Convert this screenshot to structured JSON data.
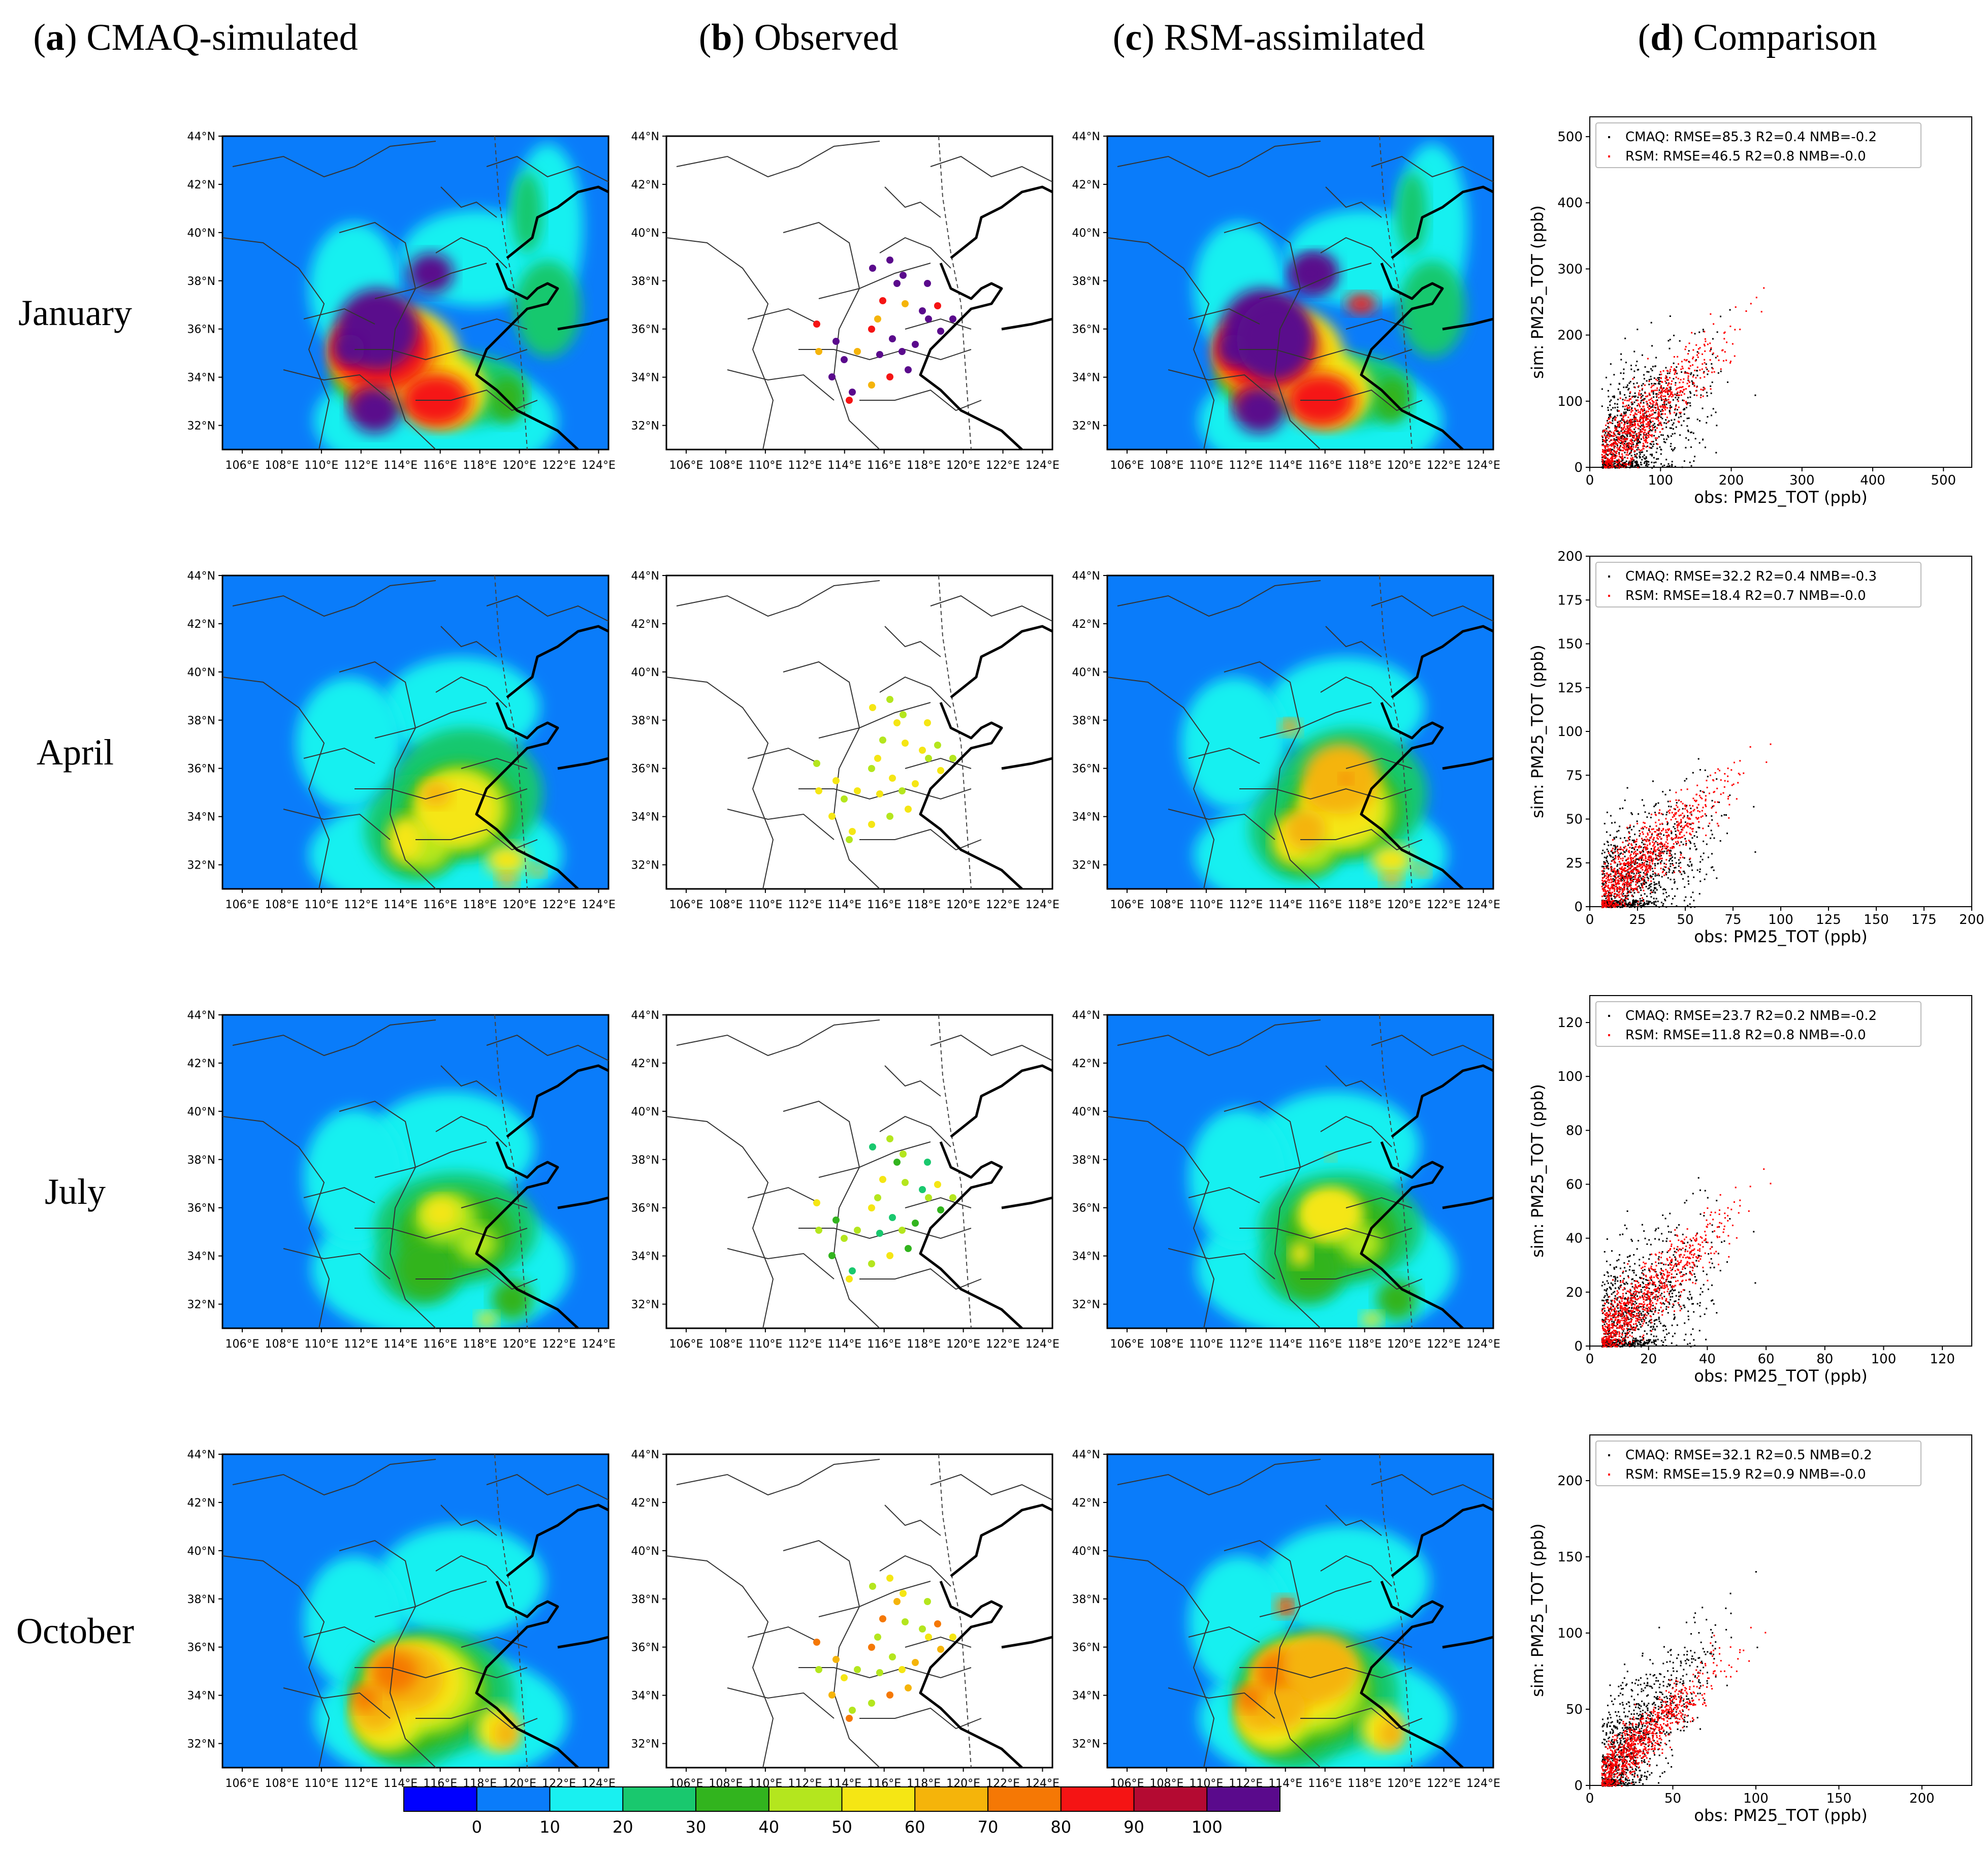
{
  "columns": [
    {
      "letter": "a",
      "label": "CMAQ-simulated"
    },
    {
      "letter": "b",
      "label": "Observed"
    },
    {
      "letter": "c",
      "label": "RSM-assimilated"
    },
    {
      "letter": "d",
      "label": "Comparison"
    }
  ],
  "months": [
    "January",
    "April",
    "July",
    "October"
  ],
  "map_axes": {
    "lat_labels": [
      "44°N",
      "42°N",
      "40°N",
      "38°N",
      "36°N",
      "34°N",
      "32°N"
    ],
    "lon_labels": [
      "106°E",
      "108°E",
      "110°E",
      "112°E",
      "114°E",
      "116°E",
      "118°E",
      "120°E",
      "122°E",
      "124°E"
    ]
  },
  "colorbar": {
    "tick_labels": [
      "0",
      "10",
      "20",
      "30",
      "40",
      "50",
      "60",
      "70",
      "80",
      "90",
      "100"
    ],
    "colors": [
      "#0000ff",
      "#0a7cfa",
      "#19f0f0",
      "#19c86e",
      "#32b41e",
      "#b4e61e",
      "#f5e614",
      "#f5b40a",
      "#f57805",
      "#f51414",
      "#b40a32",
      "#5a0a8c"
    ]
  },
  "map_colors": {
    "deep_blue": "#0a7cfa",
    "cyan": "#19f0f0",
    "green": "#19c86e",
    "dark_green": "#32b41e",
    "lime": "#b4e61e",
    "yellow": "#f5e614",
    "orange": "#f5b40a",
    "dark_orange": "#f57805",
    "red": "#f51414",
    "crimson": "#b40a32",
    "purple": "#5a0a8c"
  },
  "chart_data": [
    {
      "type": "scatter",
      "month": "January",
      "xlabel": "obs: PM25_TOT (ppb)",
      "ylabel": "sim: PM25_TOT (ppb)",
      "xlim": [
        0,
        540
      ],
      "ylim": [
        0,
        530
      ],
      "xticks": [
        0,
        100,
        200,
        300,
        400,
        500
      ],
      "yticks": [
        0,
        100,
        200,
        300,
        400,
        500
      ],
      "series": [
        {
          "name": "CMAQ",
          "color": "#000000",
          "legend": "CMAQ: RMSE=85.3 R2=0.4 NMB=-0.2",
          "rmse": 85.3,
          "r2": 0.4,
          "nmb": -0.2
        },
        {
          "name": "RSM",
          "color": "#ff0000",
          "legend": "RSM: RMSE=46.5 R2=0.8 NMB=-0.0",
          "rmse": 46.5,
          "r2": 0.8,
          "nmb": -0.0
        }
      ]
    },
    {
      "type": "scatter",
      "month": "April",
      "xlabel": "obs: PM25_TOT (ppb)",
      "ylabel": "sim: PM25_TOT (ppb)",
      "xlim": [
        0,
        200
      ],
      "ylim": [
        0,
        200
      ],
      "xticks": [
        0,
        25,
        50,
        75,
        100,
        125,
        150,
        175,
        200
      ],
      "yticks": [
        0,
        25,
        50,
        75,
        100,
        125,
        150,
        175,
        200
      ],
      "series": [
        {
          "name": "CMAQ",
          "color": "#000000",
          "legend": "CMAQ: RMSE=32.2 R2=0.4 NMB=-0.3",
          "rmse": 32.2,
          "r2": 0.4,
          "nmb": -0.3
        },
        {
          "name": "RSM",
          "color": "#ff0000",
          "legend": "RSM: RMSE=18.4 R2=0.7 NMB=-0.0",
          "rmse": 18.4,
          "r2": 0.7,
          "nmb": -0.0
        }
      ]
    },
    {
      "type": "scatter",
      "month": "July",
      "xlabel": "obs: PM25_TOT (ppb)",
      "ylabel": "sim: PM25_TOT (ppb)",
      "xlim": [
        0,
        130
      ],
      "ylim": [
        0,
        130
      ],
      "xticks": [
        0,
        20,
        40,
        60,
        80,
        100,
        120
      ],
      "yticks": [
        0,
        20,
        40,
        60,
        80,
        100,
        120
      ],
      "series": [
        {
          "name": "CMAQ",
          "color": "#000000",
          "legend": "CMAQ: RMSE=23.7 R2=0.2 NMB=-0.2",
          "rmse": 23.7,
          "r2": 0.2,
          "nmb": -0.2
        },
        {
          "name": "RSM",
          "color": "#ff0000",
          "legend": "RSM: RMSE=11.8 R2=0.8 NMB=-0.0",
          "rmse": 11.8,
          "r2": 0.8,
          "nmb": -0.0
        }
      ]
    },
    {
      "type": "scatter",
      "month": "October",
      "xlabel": "obs: PM25_TOT (ppb)",
      "ylabel": "sim: PM25_TOT (ppb)",
      "xlim": [
        0,
        230
      ],
      "ylim": [
        0,
        230
      ],
      "xticks": [
        0,
        50,
        100,
        150,
        200
      ],
      "yticks": [
        0,
        50,
        100,
        150,
        200
      ],
      "series": [
        {
          "name": "CMAQ",
          "color": "#000000",
          "legend": "CMAQ: RMSE=32.1 R2=0.5 NMB=0.2",
          "rmse": 32.1,
          "r2": 0.5,
          "nmb": 0.2
        },
        {
          "name": "RSM",
          "color": "#ff0000",
          "legend": "RSM: RMSE=15.9 R2=0.9 NMB=-0.0",
          "rmse": 15.9,
          "r2": 0.9,
          "nmb": -0.0
        }
      ]
    }
  ]
}
